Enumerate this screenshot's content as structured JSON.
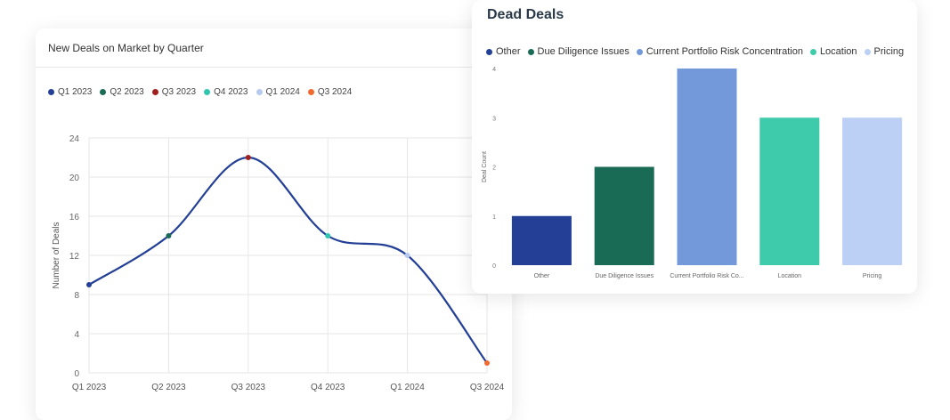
{
  "left_card": {
    "title": "New Deals on Market by Quarter",
    "legend": [
      {
        "label": "Q1 2023",
        "color": "#233f96"
      },
      {
        "label": "Q2 2023",
        "color": "#1a6b55"
      },
      {
        "label": "Q3 2023",
        "color": "#a02020"
      },
      {
        "label": "Q4 2023",
        "color": "#2fc6b0"
      },
      {
        "label": "Q1 2024",
        "color": "#b8c9f0"
      },
      {
        "label": "Q3 2024",
        "color": "#f26a2e"
      }
    ]
  },
  "right_card": {
    "title": "Dead Deals",
    "legend": [
      {
        "label": "Other",
        "color": "#233f96"
      },
      {
        "label": "Due Diligence Issues",
        "color": "#1a6b55"
      },
      {
        "label": "Current Portfolio Risk Concentration",
        "color": "#7399db"
      },
      {
        "label": "Location",
        "color": "#3ecbab"
      },
      {
        "label": "Pricing",
        "color": "#bccff5"
      }
    ]
  },
  "chart_data": [
    {
      "type": "line",
      "title": "New Deals on Market by Quarter",
      "xlabel": "",
      "ylabel": "Number of Deals",
      "categories": [
        "Q1 2023",
        "Q2 2023",
        "Q3 2023",
        "Q4 2023",
        "Q1 2024",
        "Q3 2024"
      ],
      "values": [
        9,
        14,
        22,
        14,
        12,
        1
      ],
      "point_colors": [
        "#233f96",
        "#1a6b55",
        "#a02020",
        "#2fc6b0",
        "#b8c9f0",
        "#f26a2e"
      ],
      "line_color": "#233f96",
      "ylim": [
        0,
        24
      ],
      "yticks": [
        0,
        4,
        8,
        12,
        16,
        20,
        24
      ],
      "grid": true,
      "legend": "top-left"
    },
    {
      "type": "bar",
      "title": "Dead Deals",
      "xlabel": "",
      "ylabel": "Deal Count",
      "categories": [
        "Other",
        "Due Diligence Issues",
        "Current Portfolio Risk Concentration",
        "Location",
        "Pricing"
      ],
      "tick_labels": [
        "Other",
        "Due Diligence Issues",
        "Current Portfolio Risk Co...",
        "Location",
        "Pricing"
      ],
      "values": [
        1,
        2,
        4,
        3,
        3
      ],
      "colors": [
        "#233f96",
        "#1a6b55",
        "#7399db",
        "#3ecbab",
        "#bccff5"
      ],
      "ylim": [
        0,
        4
      ],
      "yticks": [
        0,
        1,
        2,
        3,
        4
      ],
      "grid": false,
      "legend": "top"
    }
  ]
}
